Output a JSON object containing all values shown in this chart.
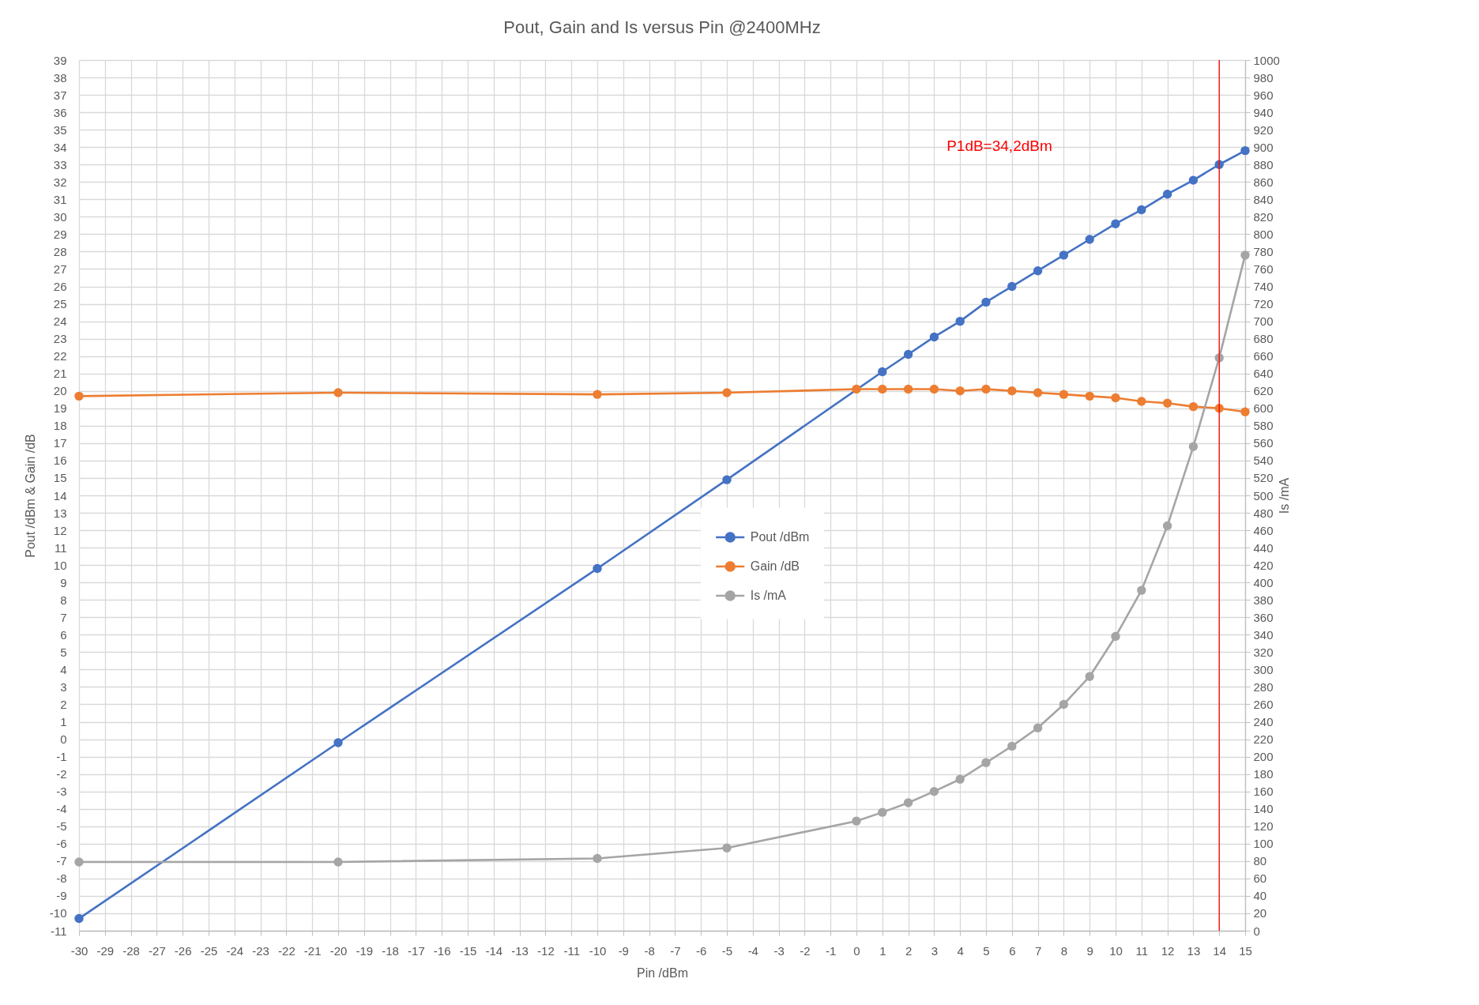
{
  "chart_data": {
    "type": "line",
    "title": "Pout, Gain and Is versus Pin @2400MHz",
    "xlabel": "Pin /dBm",
    "ylabel": "Pout /dBm & Gain /dB",
    "y2label": "Is /mA",
    "x": [
      -30,
      -20,
      -10,
      -5,
      0,
      1,
      2,
      3,
      4,
      5,
      6,
      7,
      8,
      9,
      10,
      11,
      12,
      13,
      14,
      15
    ],
    "series": [
      {
        "name": "Pout /dBm",
        "color": "#4472c4",
        "x": [
          -30,
          -20,
          -10,
          -5,
          1,
          2,
          3,
          4,
          5,
          6,
          7,
          8,
          9,
          10,
          11,
          12,
          13,
          14,
          15
        ],
        "values": [
          -10.3,
          -0.2,
          9.8,
          14.9,
          21.1,
          22.1,
          23.1,
          24.0,
          25.1,
          26.0,
          26.9,
          27.8,
          28.7,
          29.6,
          30.4,
          31.3,
          32.1,
          33.0,
          33.8
        ]
      },
      {
        "name": "Gain /dB",
        "color": "#ed7d31",
        "values": [
          19.7,
          19.9,
          19.8,
          19.9,
          20.1,
          20.1,
          20.1,
          20.1,
          20.0,
          20.1,
          20.0,
          19.9,
          19.8,
          19.7,
          19.6,
          19.4,
          19.3,
          19.1,
          19.0,
          18.8
        ]
      },
      {
        "name": "Is /mA",
        "color": "#a5a5a5",
        "axis": "y2",
        "values": [
          79,
          79,
          83,
          95,
          126,
          136,
          147,
          160,
          174,
          193,
          212,
          233,
          260,
          292,
          338,
          391,
          465,
          556,
          658,
          776
        ]
      }
    ],
    "xlim": [
      -30,
      15
    ],
    "xticks": [
      -30,
      -29,
      -28,
      -27,
      -26,
      -25,
      -24,
      -23,
      -22,
      -21,
      -20,
      -19,
      -18,
      -17,
      -16,
      -15,
      -14,
      -13,
      -12,
      -11,
      -10,
      -9,
      -8,
      -7,
      -6,
      -5,
      -4,
      -3,
      -2,
      -1,
      0,
      1,
      2,
      3,
      4,
      5,
      6,
      7,
      8,
      9,
      10,
      11,
      12,
      13,
      14,
      15
    ],
    "ylim": [
      -11,
      39
    ],
    "yticks": [
      -11,
      -10,
      -9,
      -8,
      -7,
      -6,
      -5,
      -4,
      -3,
      -2,
      -1,
      0,
      1,
      2,
      3,
      4,
      5,
      6,
      7,
      8,
      9,
      10,
      11,
      12,
      13,
      14,
      15,
      16,
      17,
      18,
      19,
      20,
      21,
      22,
      23,
      24,
      25,
      26,
      27,
      28,
      29,
      30,
      31,
      32,
      33,
      34,
      35,
      36,
      37,
      38,
      39
    ],
    "y2lim": [
      0,
      1000
    ],
    "y2ticks": [
      0,
      20,
      40,
      60,
      80,
      100,
      120,
      140,
      160,
      180,
      200,
      220,
      240,
      260,
      280,
      300,
      320,
      340,
      360,
      380,
      400,
      420,
      440,
      460,
      480,
      500,
      520,
      540,
      560,
      580,
      600,
      620,
      640,
      660,
      680,
      700,
      720,
      740,
      760,
      780,
      800,
      820,
      840,
      860,
      880,
      900,
      920,
      940,
      960,
      980,
      1000
    ],
    "ref_lines": [
      {
        "axis": "x",
        "value": 14,
        "color": "#ff0000"
      }
    ],
    "annotations": [
      "P1dB=34,2dBm"
    ],
    "grid": true,
    "legend": "center",
    "marker": "circle",
    "line_style": "solid"
  }
}
